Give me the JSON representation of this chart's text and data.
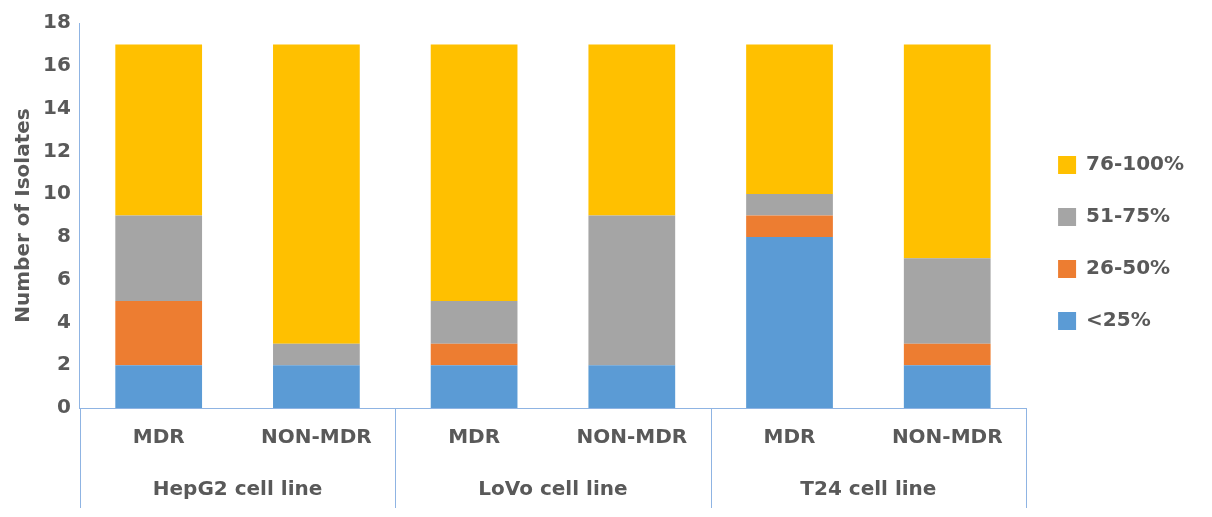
{
  "chart_data": {
    "type": "bar",
    "stacked": true,
    "ylabel": "Number of Isolates",
    "categories": [
      "MDR",
      "NON-MDR",
      "MDR",
      "NON-MDR",
      "MDR",
      "NON-MDR"
    ],
    "annotations": [
      "HepG2 cell line",
      "LoVo cell line",
      "T24 cell line"
    ],
    "series": [
      {
        "name": "<25%",
        "color": "#5b9bd5",
        "values": [
          2,
          2,
          2,
          2,
          8,
          2
        ]
      },
      {
        "name": "26-50%",
        "color": "#ed7d31",
        "values": [
          3,
          0,
          1,
          0,
          1,
          1
        ]
      },
      {
        "name": "51-75%",
        "color": "#a5a5a5",
        "values": [
          4,
          1,
          2,
          7,
          1,
          4
        ]
      },
      {
        "name": "76-100%",
        "color": "#ffc000",
        "values": [
          8,
          14,
          12,
          8,
          7,
          10
        ]
      }
    ],
    "ylim": [
      0,
      18
    ],
    "yticks": [
      0,
      2,
      4,
      6,
      8,
      10,
      12,
      14,
      16,
      18
    ],
    "grid": false,
    "legend": "right"
  }
}
